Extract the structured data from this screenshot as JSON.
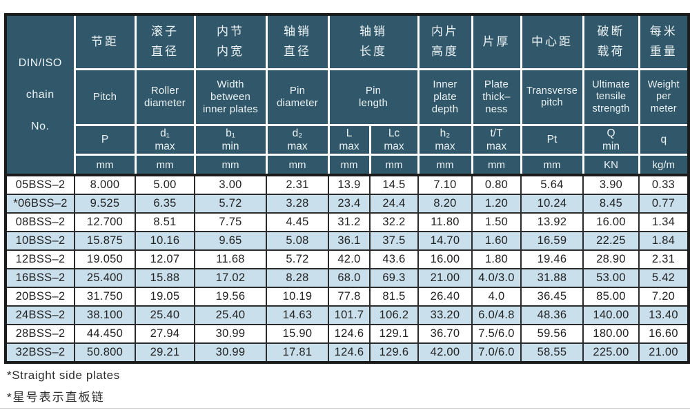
{
  "table": {
    "corner_lines": [
      "DIN/ISO",
      "chain",
      "No."
    ],
    "columns": [
      {
        "id": "pitch",
        "cn": "节距",
        "en": "Pitch",
        "sym": "P",
        "unit": "mm"
      },
      {
        "id": "roller-diameter",
        "cn": "滚子\n直径",
        "en": "Roller\ndiameter",
        "sym": "d₁\nmax",
        "unit": "mm"
      },
      {
        "id": "width-between-inner-plates",
        "cn": "内节\n内宽",
        "en": "Width\nbetween\ninner plates",
        "sym": "b₁\nmin",
        "unit": "mm"
      },
      {
        "id": "pin-diameter",
        "cn": "轴销\n直径",
        "en": "Pin\ndiameter",
        "sym": "d₂\nmax",
        "unit": "mm"
      },
      {
        "id": "pin-length",
        "cn": "轴销\n长度",
        "en": "Pin\nlength",
        "sub": [
          {
            "id": "l",
            "sym": "L\nmax",
            "unit": "mm"
          },
          {
            "id": "lc",
            "sym": "Lc\nmax",
            "unit": "mm"
          }
        ]
      },
      {
        "id": "inner-plate-depth",
        "cn": "内片\n高度",
        "en": "Inner\nplate\ndepth",
        "sym": "h₂\nmax",
        "unit": "mm"
      },
      {
        "id": "plate-thickness",
        "cn": "片厚",
        "en": "Plate\nthick–\nness",
        "sym": "t/T\nmax",
        "unit": "mm"
      },
      {
        "id": "transverse-pitch",
        "cn": "中心距",
        "en": "Transverse\npitch",
        "sym": "Pt",
        "unit": "mm",
        "narrow": true
      },
      {
        "id": "ultimate-tensile-strength",
        "cn": "破断\n载荷",
        "en": "Ultimate\ntensile\nstrength",
        "sym": "Q\nmin",
        "unit": "KN",
        "narrow": true
      },
      {
        "id": "weight-per-meter",
        "cn": "每米\n重量",
        "en": "Weight\nper\nmeter",
        "sym": "q",
        "unit": "kg/m",
        "narrow": true
      }
    ],
    "rows": [
      {
        "name": "05BSS–2",
        "values": [
          "8.000",
          "5.00",
          "3.00",
          "2.31",
          "13.9",
          "14.5",
          "7.10",
          "0.80",
          "5.64",
          "3.90",
          "0.33"
        ]
      },
      {
        "name": "*06BSS–2",
        "values": [
          "9.525",
          "6.35",
          "5.72",
          "3.28",
          "23.4",
          "24.4",
          "8.20",
          "1.20",
          "10.24",
          "8.45",
          "0.77"
        ]
      },
      {
        "name": "08BSS–2",
        "values": [
          "12.700",
          "8.51",
          "7.75",
          "4.45",
          "31.2",
          "32.2",
          "11.80",
          "1.50",
          "13.92",
          "16.00",
          "1.34"
        ]
      },
      {
        "name": "10BSS–2",
        "values": [
          "15.875",
          "10.16",
          "9.65",
          "5.08",
          "36.1",
          "37.5",
          "14.70",
          "1.60",
          "16.59",
          "22.25",
          "1.84"
        ]
      },
      {
        "name": "12BSS–2",
        "values": [
          "19.050",
          "12.07",
          "11.68",
          "5.72",
          "42.0",
          "43.6",
          "16.00",
          "1.80",
          "19.46",
          "28.90",
          "2.31"
        ]
      },
      {
        "name": "16BSS–2",
        "values": [
          "25.400",
          "15.88",
          "17.02",
          "8.28",
          "68.0",
          "69.3",
          "21.00",
          "4.0/3.0",
          "31.88",
          "53.00",
          "5.42"
        ]
      },
      {
        "name": "20BSS–2",
        "values": [
          "31.750",
          "19.05",
          "19.56",
          "10.19",
          "77.8",
          "81.5",
          "26.40",
          "4.0",
          "36.45",
          "85.00",
          "7.20"
        ]
      },
      {
        "name": "24BSS–2",
        "values": [
          "38.100",
          "25.40",
          "25.40",
          "14.63",
          "101.7",
          "106.2",
          "33.20",
          "6.0/4.8",
          "48.36",
          "140.00",
          "13.40"
        ]
      },
      {
        "name": "28BSS–2",
        "values": [
          "44.450",
          "27.94",
          "30.99",
          "15.90",
          "124.6",
          "129.1",
          "36.70",
          "7.5/6.0",
          "59.56",
          "180.00",
          "16.60"
        ]
      },
      {
        "name": "32BSS–2",
        "values": [
          "50.800",
          "29.21",
          "30.99",
          "17.81",
          "124.6",
          "129.6",
          "42.00",
          "7.0/6.0",
          "58.55",
          "225.00",
          "21.00"
        ]
      }
    ]
  },
  "footnotes": {
    "en": "*Straight side plates",
    "cn": "*星号表示直板链"
  },
  "colors": {
    "header_bg": "#30576a",
    "header_text": "#edf3f5",
    "row_alt_bg": "#c9dfec",
    "body_text": "#222222",
    "border_dark": "#1b1b1b",
    "header_grid": "#ffffff"
  }
}
